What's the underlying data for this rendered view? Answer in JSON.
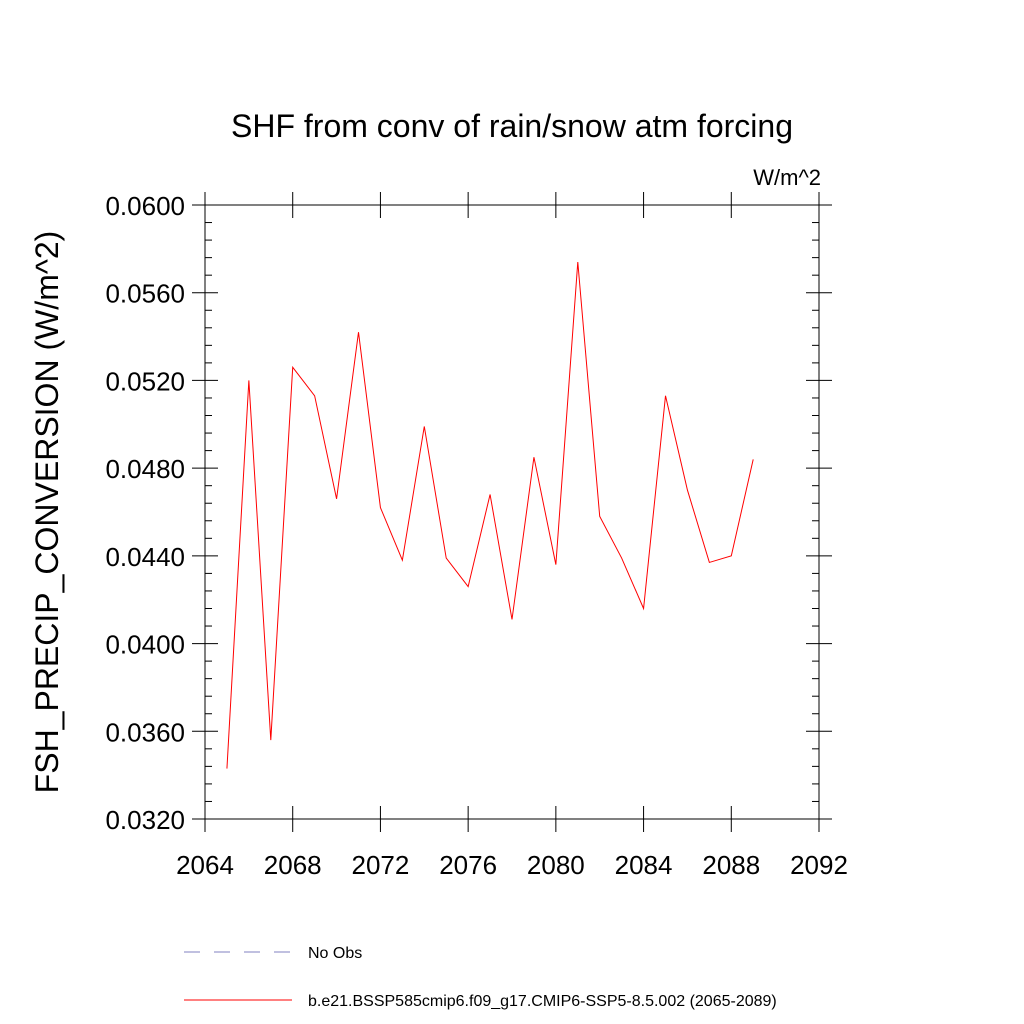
{
  "chart_data": {
    "type": "line",
    "title": "SHF from conv of rain/snow atm forcing",
    "units": "W/m^2",
    "xlabel": "",
    "ylabel": "FSH_PRECIP_CONVERSION  (W/m^2)",
    "xlim": [
      2064,
      2092
    ],
    "ylim": [
      0.032,
      0.06
    ],
    "xticks": [
      "2064",
      "2068",
      "2072",
      "2076",
      "2080",
      "2084",
      "2088",
      "2092"
    ],
    "yticks": [
      "0.0320",
      "0.0360",
      "0.0400",
      "0.0440",
      "0.0480",
      "0.0520",
      "0.0560",
      "0.0600"
    ],
    "grid": false,
    "legend_position": "bottom",
    "series": [
      {
        "name": "b.e21.BSSP585cmip6.f09_g17.CMIP6-SSP5-8.5.002 (2065-2089)",
        "color": "#ff0000",
        "style": "solid",
        "x": [
          2065,
          2066,
          2067,
          2068,
          2069,
          2070,
          2071,
          2072,
          2073,
          2074,
          2075,
          2076,
          2077,
          2078,
          2079,
          2080,
          2081,
          2082,
          2083,
          2084,
          2085,
          2086,
          2087,
          2088,
          2089
        ],
        "values": [
          0.0343,
          0.052,
          0.0356,
          0.0526,
          0.0513,
          0.0466,
          0.0542,
          0.0462,
          0.0438,
          0.0499,
          0.0439,
          0.0426,
          0.0468,
          0.0411,
          0.0485,
          0.0436,
          0.0574,
          0.0458,
          0.0439,
          0.0416,
          0.0513,
          0.047,
          0.0437,
          0.044,
          0.0484
        ]
      },
      {
        "name": "No Obs",
        "color": "#8080c0",
        "style": "dashed",
        "x": [],
        "values": []
      }
    ]
  }
}
